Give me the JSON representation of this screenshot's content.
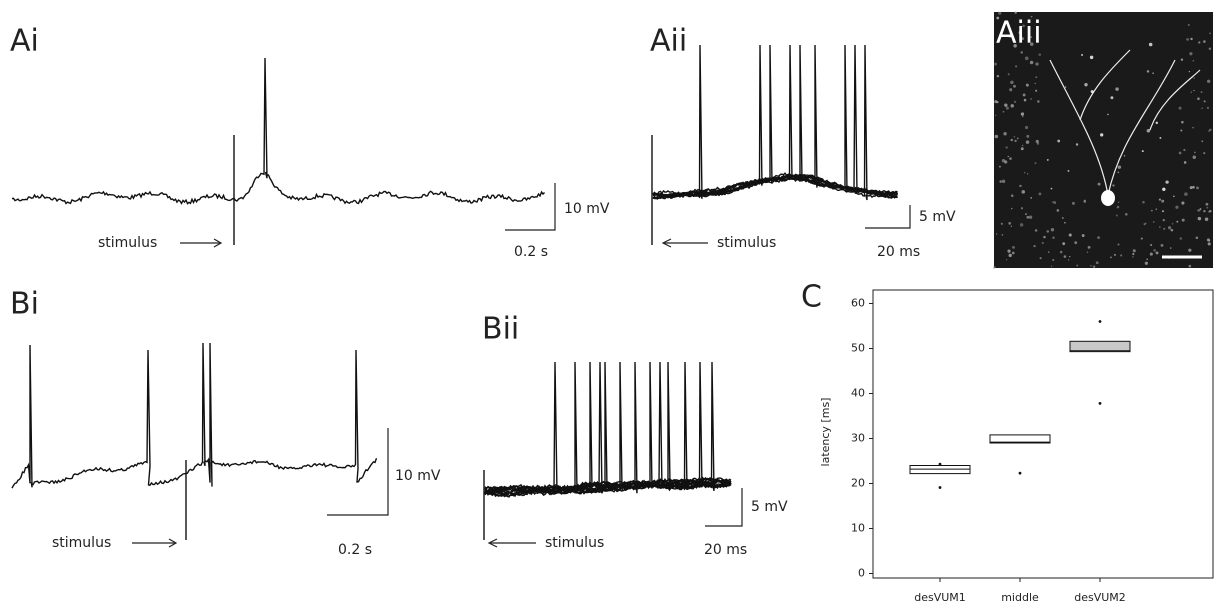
{
  "panels": {
    "ai": {
      "label": "Ai",
      "stimulus": "stimulus",
      "scale_v": "10 mV",
      "scale_t": "0.2 s"
    },
    "aii": {
      "label": "Aii",
      "stimulus": "stimulus",
      "scale_v": "5 mV",
      "scale_t": "20 ms"
    },
    "aiii": {
      "label": "Aiii"
    },
    "bi": {
      "label": "Bi",
      "stimulus": "stimulus",
      "scale_v": "10 mV",
      "scale_t": "0.2 s"
    },
    "bii": {
      "label": "Bii",
      "stimulus": "stimulus",
      "scale_v": "5 mV",
      "scale_t": "20 ms"
    },
    "c": {
      "label": "C"
    }
  },
  "chart_data": {
    "type": "box",
    "ylabel": "latency [ms]",
    "categories": [
      "desVUM1",
      "middle",
      "desVUM2"
    ],
    "series": [
      {
        "q1": 22.2,
        "median": 23.2,
        "q3": 24,
        "outliers": [
          24.3,
          19.1
        ],
        "color": "#ffffff"
      },
      {
        "q1": 29,
        "median": 29.2,
        "q3": 30.8,
        "outliers": [
          22.3
        ],
        "color": "#ffffff"
      },
      {
        "q1": 49.3,
        "median": 49.5,
        "q3": 51.6,
        "outliers": [
          56,
          37.8
        ],
        "color": "#c8c8c8"
      }
    ],
    "ylim": [
      -1,
      63
    ],
    "yticks": [
      0,
      10,
      20,
      30,
      40,
      50,
      60
    ]
  }
}
